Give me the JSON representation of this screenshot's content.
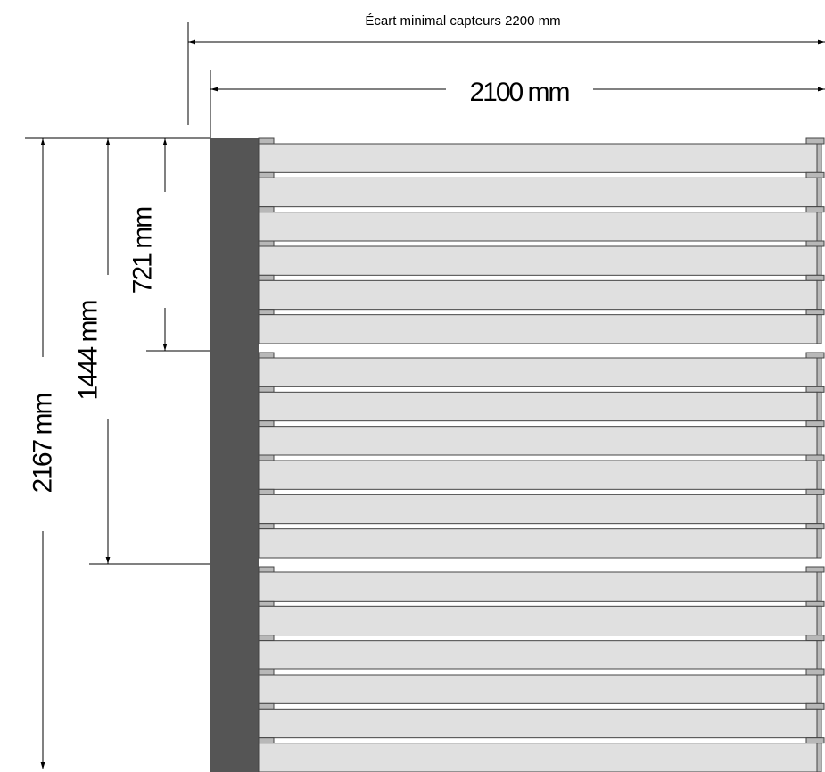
{
  "dimensions": {
    "min_spacing": "Écart minimal capteurs 2200 mm",
    "width": "2100 mm",
    "height_full": "2167 mm",
    "height_two_thirds": "1444 mm",
    "height_one_third": "721 mm"
  },
  "collector": {
    "tube_count": 18,
    "modules": 3,
    "tubes_per_module": 6
  },
  "colors": {
    "manifold": "#555555",
    "tube_fill": "#e0e0e0",
    "tube_stroke": "#444444",
    "clip_fill": "#b8b8b8",
    "line": "#000000"
  }
}
